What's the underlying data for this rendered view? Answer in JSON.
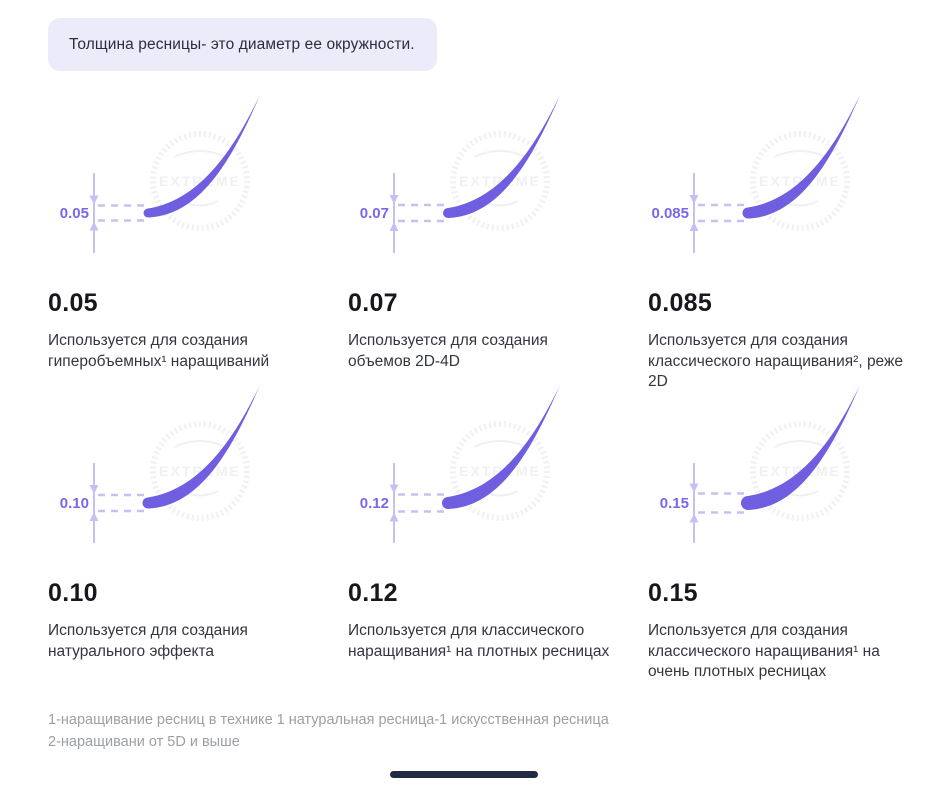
{
  "note": {
    "text": "Толщина ресницы- это диаметр ее окружности."
  },
  "items": [
    {
      "value": "0.05",
      "description": "Используется для создания гиперобъемных¹ наращиваний"
    },
    {
      "value": "0.07",
      "description": "Используется для создания объемов 2D-4D"
    },
    {
      "value": "0.085",
      "description": "Используется для создания классического наращивания², реже 2D"
    },
    {
      "value": "0.10",
      "description": "Используется для создания натурального эффекта"
    },
    {
      "value": "0.12",
      "description": "Используется для классического наращивания¹ на плотных ресницах"
    },
    {
      "value": "0.15",
      "description": "Используется для создания классического наращивания¹ на очень плотных ресницах"
    }
  ],
  "footnotes": [
    "1-наращивание ресниц в технике 1 натуральная ресница-1 искусственная ресница",
    "2-наращивани от 5D и выше"
  ],
  "watermark_text": "EXTREME",
  "colors": {
    "lash": "#6f5fe0",
    "dimension": "#c7c0f2",
    "value_label": "#7a67ea",
    "note_bg": "#ecebfa",
    "heading_text": "#17181d",
    "body_text": "#33363e",
    "footnote_text": "#9aa0a6",
    "watermark": "#98a0ae"
  }
}
